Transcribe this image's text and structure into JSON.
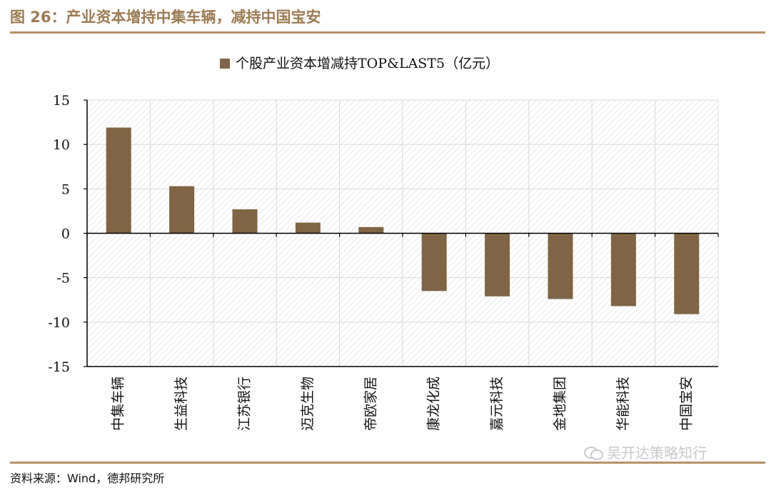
{
  "figure": {
    "title": "图 26：产业资本增持中集车辆，减持中国宝安",
    "source": "资料来源：Wind，德邦研究所",
    "watermark": "吴开达策略知行",
    "colors": {
      "accent": "#9c7b55",
      "bar": "#7f6545",
      "rule": "#b8916a"
    }
  },
  "chart_data": {
    "type": "bar",
    "legend": "个股产业资本增减持TOP&LAST5（亿元）",
    "legend_position": "top-center",
    "categories": [
      "中集车辆",
      "生益科技",
      "江苏银行",
      "迈克生物",
      "帝欧家居",
      "康龙化成",
      "嘉元科技",
      "金地集团",
      "华能科技",
      "中国宝安"
    ],
    "series": [
      {
        "name": "个股产业资本增减持TOP&LAST5（亿元）",
        "values": [
          11.9,
          5.3,
          2.7,
          1.2,
          0.7,
          -6.5,
          -7.1,
          -7.4,
          -8.2,
          -9.1
        ]
      }
    ],
    "yticks": [
      "15",
      "10",
      "5",
      "0",
      "-5",
      "-10",
      "-15"
    ],
    "ylim": [
      -15,
      15
    ],
    "grid": true
  }
}
